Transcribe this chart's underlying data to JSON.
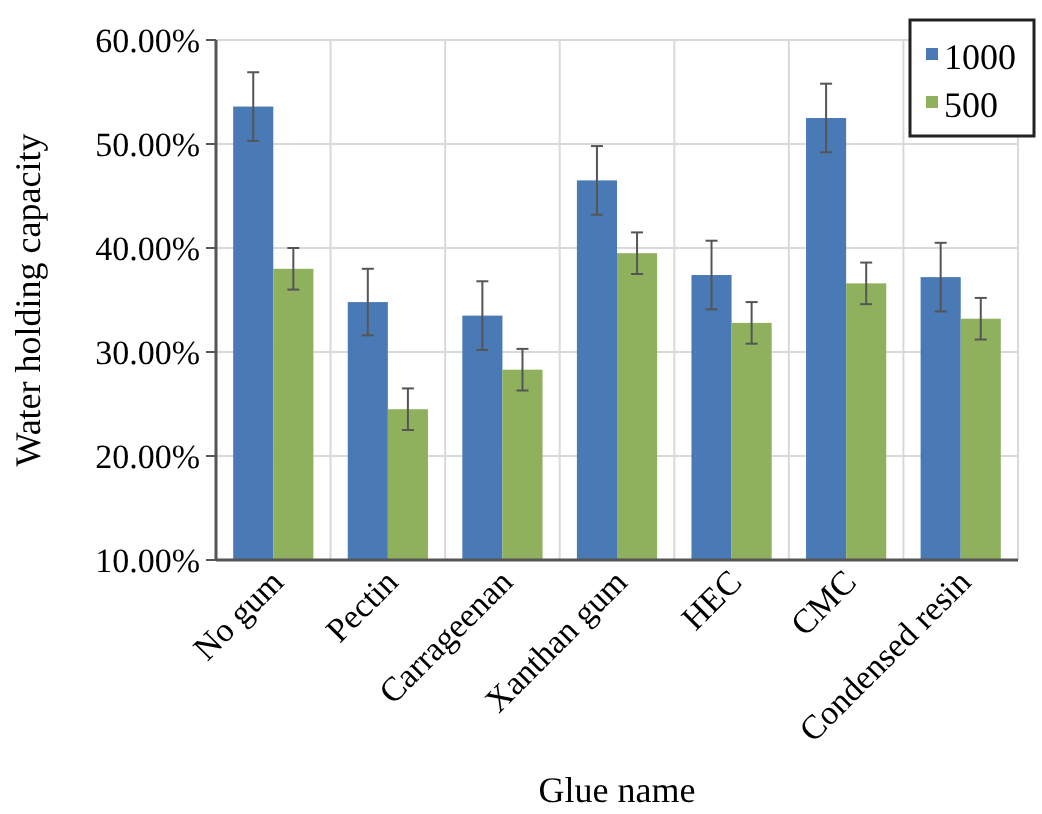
{
  "chart_data": {
    "type": "bar",
    "xlabel": "Glue name",
    "ylabel": "Water holding capacity",
    "categories": [
      "No gum",
      "Pectin",
      "Carrageenan",
      "Xanthan gum",
      "HEC",
      "CMC",
      "Condensed resin"
    ],
    "series": [
      {
        "name": "1000",
        "color": "#4a7ab5",
        "values": [
          53.6,
          34.8,
          33.5,
          46.5,
          37.4,
          52.5,
          37.2
        ],
        "errors": [
          3.3,
          3.2,
          3.3,
          3.3,
          3.3,
          3.3,
          3.3
        ]
      },
      {
        "name": "500",
        "color": "#8fb05c",
        "values": [
          38,
          24.5,
          28.3,
          39.5,
          32.8,
          36.6,
          33.2
        ],
        "errors": [
          2,
          2,
          2,
          2,
          2,
          2,
          2
        ]
      }
    ],
    "ylim": [
      10,
      60
    ],
    "yticks": [
      {
        "value": 10,
        "label": "10.00%"
      },
      {
        "value": 20,
        "label": "20.00%"
      },
      {
        "value": 30,
        "label": "30.00%"
      },
      {
        "value": 40,
        "label": "40.00%"
      },
      {
        "value": 50,
        "label": "50.00%"
      },
      {
        "value": 60,
        "label": "60.00%"
      }
    ],
    "grid": true,
    "legend": "top right"
  }
}
